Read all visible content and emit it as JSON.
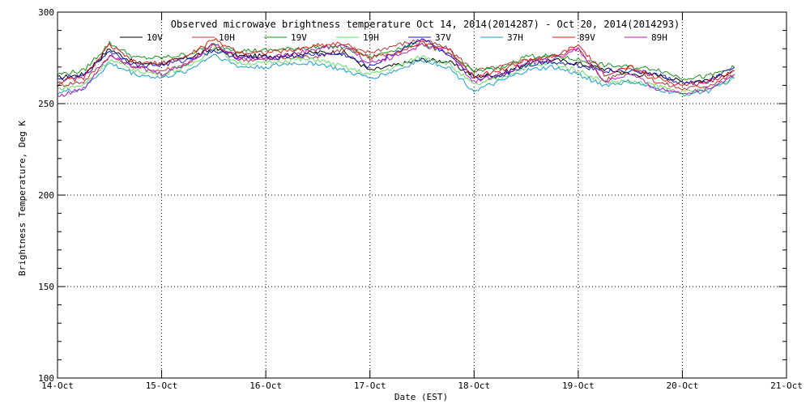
{
  "chart_data": {
    "type": "line",
    "title": "Observed microwave brightness temperature Oct 14, 2014(2014287) - Oct 20, 2014(2014293)",
    "xlabel": "Date (EST)",
    "ylabel": "Brightness Temperature, Deg K",
    "ylim": [
      100,
      300
    ],
    "xlim": [
      "2014-10-14",
      "2014-10-21"
    ],
    "y_ticks": [
      100,
      150,
      200,
      250,
      300
    ],
    "x_ticks": [
      "14-Oct",
      "15-Oct",
      "16-Oct",
      "17-Oct",
      "18-Oct",
      "19-Oct",
      "20-Oct",
      "21-Oct"
    ],
    "grid": true,
    "legend_position": "top",
    "x": [
      "2014-10-14 00:00",
      "2014-10-14 06:00",
      "2014-10-14 12:00",
      "2014-10-14 18:00",
      "2014-10-15 00:00",
      "2014-10-15 06:00",
      "2014-10-15 12:00",
      "2014-10-15 18:00",
      "2014-10-16 00:00",
      "2014-10-16 06:00",
      "2014-10-16 12:00",
      "2014-10-16 18:00",
      "2014-10-17 00:00",
      "2014-10-17 06:00",
      "2014-10-17 12:00",
      "2014-10-17 18:00",
      "2014-10-18 00:00",
      "2014-10-18 06:00",
      "2014-10-18 12:00",
      "2014-10-18 18:00",
      "2014-10-19 00:00",
      "2014-10-19 06:00",
      "2014-10-19 12:00",
      "2014-10-19 18:00",
      "2014-10-20 00:00",
      "2014-10-20 06:00",
      "2014-10-20 12:00"
    ],
    "series": [
      {
        "name": "10V",
        "color": "#000000",
        "values": [
          264,
          266,
          280,
          272,
          272,
          275,
          280,
          276,
          276,
          277,
          278,
          278,
          268,
          271,
          274,
          273,
          265,
          266,
          272,
          274,
          272,
          269,
          266,
          266,
          262,
          263,
          268
        ]
      },
      {
        "name": "10H",
        "color": "#b03a3a",
        "values": [
          260,
          262,
          276,
          270,
          268,
          272,
          282,
          274,
          274,
          275,
          276,
          280,
          278,
          282,
          285,
          280,
          268,
          270,
          274,
          276,
          280,
          262,
          270,
          262,
          258,
          260,
          266
        ]
      },
      {
        "name": "19V",
        "color": "#1a8f1a",
        "values": [
          266,
          268,
          283,
          275,
          275,
          277,
          282,
          279,
          279,
          280,
          281,
          281,
          275,
          280,
          283,
          277,
          268,
          269,
          276,
          276,
          274,
          271,
          270,
          269,
          264,
          265,
          270
        ]
      },
      {
        "name": "19H",
        "color": "#66dd66",
        "values": [
          258,
          260,
          274,
          268,
          266,
          270,
          280,
          272,
          272,
          274,
          274,
          270,
          266,
          270,
          276,
          272,
          260,
          264,
          270,
          272,
          268,
          262,
          262,
          260,
          256,
          258,
          264
        ]
      },
      {
        "name": "37V",
        "color": "#1a1acc",
        "values": [
          263,
          265,
          279,
          271,
          271,
          274,
          279,
          275,
          275,
          276,
          277,
          277,
          270,
          278,
          286,
          276,
          264,
          265,
          271,
          273,
          271,
          268,
          268,
          266,
          261,
          262,
          270
        ]
      },
      {
        "name": "37H",
        "color": "#1a9ccc",
        "values": [
          256,
          258,
          272,
          266,
          264,
          268,
          277,
          270,
          270,
          272,
          272,
          268,
          264,
          268,
          274,
          270,
          257,
          262,
          268,
          270,
          266,
          260,
          262,
          258,
          255,
          257,
          264
        ]
      },
      {
        "name": "89V",
        "color": "#dd1a1a",
        "values": [
          262,
          264,
          282,
          272,
          272,
          276,
          285,
          278,
          278,
          279,
          282,
          283,
          275,
          278,
          283,
          280,
          265,
          268,
          274,
          275,
          282,
          266,
          270,
          264,
          260,
          262,
          268
        ]
      },
      {
        "name": "89H",
        "color": "#b81ab8",
        "values": [
          254,
          258,
          277,
          270,
          266,
          272,
          283,
          275,
          275,
          277,
          280,
          282,
          272,
          276,
          282,
          278,
          262,
          266,
          272,
          274,
          280,
          262,
          266,
          258,
          256,
          258,
          266
        ]
      }
    ]
  }
}
